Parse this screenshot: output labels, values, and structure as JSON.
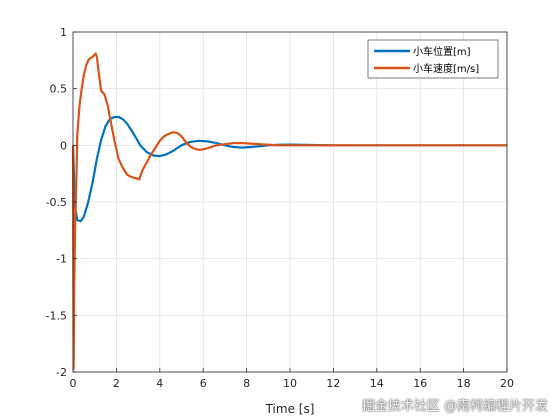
{
  "chart_data": {
    "type": "line",
    "title": "",
    "xlabel": "Time [s]",
    "ylabel": "",
    "xlim": [
      0,
      20
    ],
    "ylim": [
      -2,
      1
    ],
    "xticks": [
      0,
      2,
      4,
      6,
      8,
      10,
      12,
      14,
      16,
      18,
      20
    ],
    "yticks": [
      1,
      0.5,
      0,
      -0.5,
      -1,
      -1.5,
      -2
    ],
    "grid": true,
    "legend_position": "top-right",
    "series": [
      {
        "name": "小车位置[m]",
        "color": "#0072BD",
        "x": [
          0,
          0.05,
          0.1,
          0.2,
          0.35,
          0.5,
          0.7,
          0.9,
          1.1,
          1.3,
          1.5,
          1.7,
          1.9,
          2.1,
          2.3,
          2.5,
          2.8,
          3.1,
          3.4,
          3.7,
          4.0,
          4.3,
          4.6,
          5.0,
          5.4,
          5.8,
          6.2,
          6.6,
          7.0,
          7.4,
          7.8,
          8.2,
          8.6,
          9.0,
          9.5,
          10.0,
          11.0,
          12.0,
          14.0,
          16.0,
          18.0,
          20.0
        ],
        "y": [
          0,
          -0.3,
          -0.55,
          -0.66,
          -0.67,
          -0.63,
          -0.5,
          -0.33,
          -0.12,
          0.05,
          0.17,
          0.23,
          0.25,
          0.25,
          0.23,
          0.19,
          0.1,
          0.0,
          -0.06,
          -0.09,
          -0.095,
          -0.08,
          -0.05,
          0.0,
          0.03,
          0.04,
          0.035,
          0.02,
          0.0,
          -0.015,
          -0.02,
          -0.015,
          -0.008,
          0.0,
          0.005,
          0.006,
          0.003,
          0.0,
          0.0,
          0.0,
          0.0,
          0.0
        ]
      },
      {
        "name": "小车速度[m/s]",
        "color": "#D95319",
        "x": [
          0,
          0.03,
          0.06,
          0.1,
          0.15,
          0.2,
          0.3,
          0.4,
          0.5,
          0.6,
          0.7,
          0.8,
          0.9,
          1.0,
          1.05,
          1.1,
          1.2,
          1.3,
          1.45,
          1.6,
          1.75,
          1.9,
          2.1,
          2.3,
          2.5,
          2.7,
          2.9,
          3.05,
          3.2,
          3.4,
          3.6,
          3.8,
          4.0,
          4.2,
          4.4,
          4.6,
          4.8,
          5.0,
          5.2,
          5.4,
          5.6,
          5.8,
          6.0,
          6.3,
          6.6,
          7.0,
          7.4,
          7.8,
          8.2,
          8.6,
          9.0,
          9.5,
          10.0,
          11.0,
          12.0,
          14.0,
          16.0,
          18.0,
          20.0
        ],
        "y": [
          0,
          -1.97,
          -1.2,
          -0.7,
          -0.35,
          0.1,
          0.35,
          0.5,
          0.62,
          0.7,
          0.75,
          0.77,
          0.78,
          0.8,
          0.81,
          0.78,
          0.62,
          0.48,
          0.45,
          0.35,
          0.2,
          0.05,
          -0.12,
          -0.2,
          -0.26,
          -0.28,
          -0.29,
          -0.3,
          -0.22,
          -0.15,
          -0.08,
          -0.02,
          0.04,
          0.08,
          0.1,
          0.115,
          0.11,
          0.08,
          0.03,
          -0.01,
          -0.03,
          -0.04,
          -0.035,
          -0.02,
          0.0,
          0.01,
          0.02,
          0.02,
          0.015,
          0.01,
          0.005,
          0.0,
          0.0,
          0.0,
          0.0,
          0.0,
          0.0,
          0.0,
          0.0
        ]
      }
    ]
  },
  "watermark": "掘金技术社区 @南柯编程片开发"
}
